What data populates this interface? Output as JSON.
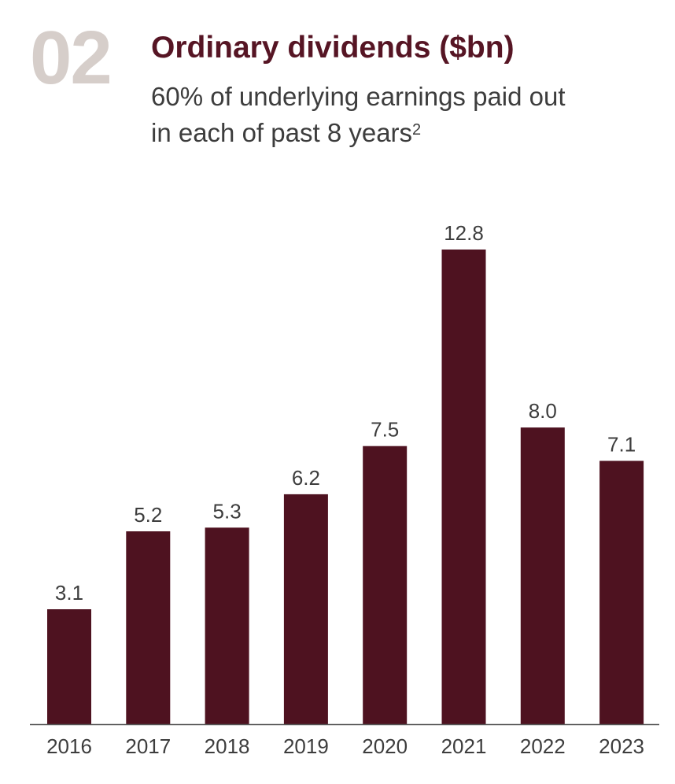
{
  "header": {
    "section_number": "02",
    "title": "Ordinary dividends ($bn)",
    "subtitle_line1": "60% of underlying earnings paid out",
    "subtitle_line2": "in each of past 8 years",
    "subtitle_footnote": "2"
  },
  "colors": {
    "bar": "#4e1220",
    "title": "#561524",
    "section_number": "#d6ceca",
    "text": "#3d3d3d",
    "axis": "#555555"
  },
  "chart_data": {
    "type": "bar",
    "title": "Ordinary dividends ($bn)",
    "categories": [
      "2016",
      "2017",
      "2018",
      "2019",
      "2020",
      "2021",
      "2022",
      "2023"
    ],
    "values": [
      3.1,
      5.2,
      5.3,
      6.2,
      7.5,
      12.8,
      8.0,
      7.1
    ],
    "value_labels": [
      "3.1",
      "5.2",
      "5.3",
      "6.2",
      "7.5",
      "12.8",
      "8.0",
      "7.1"
    ],
    "xlabel": "",
    "ylabel": "",
    "ylim": [
      0,
      12.8
    ],
    "grid": false,
    "legend": "none"
  }
}
